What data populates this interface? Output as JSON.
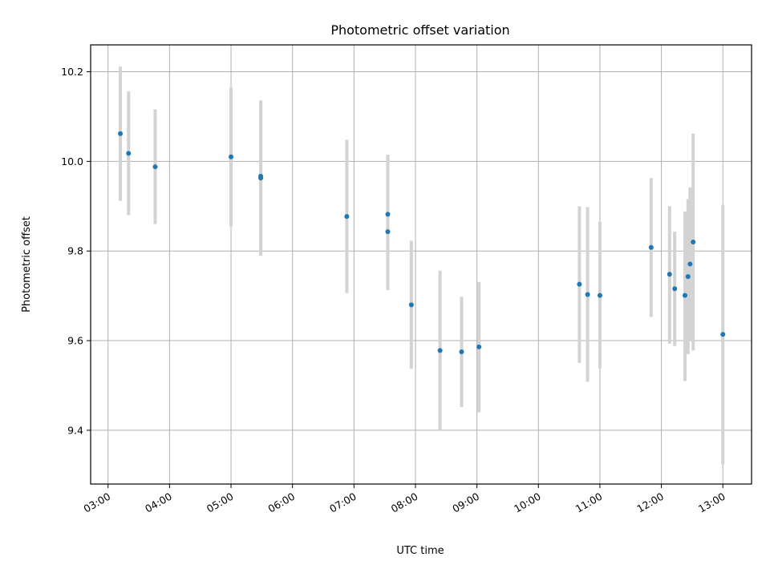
{
  "chart_data": {
    "type": "scatter",
    "title": "Photometric offset variation",
    "xlabel": "UTC time",
    "ylabel": "Photometric offset",
    "x_ticks": [
      "03:00",
      "04:00",
      "05:00",
      "06:00",
      "07:00",
      "08:00",
      "09:00",
      "10:00",
      "11:00",
      "12:00",
      "13:00"
    ],
    "y_ticks": [
      "9.4",
      "9.6",
      "9.8",
      "10.0",
      "10.2"
    ],
    "xlim": [
      "02:43",
      "13:28"
    ],
    "ylim": [
      9.28,
      10.26
    ],
    "grid": true,
    "legend": "none",
    "colors": {
      "point": "#1f77b4",
      "errorbar": "#d3d3d3",
      "grid": "#b0b0b0"
    },
    "points": [
      {
        "t": "03:12",
        "y": 10.062,
        "lo": 9.912,
        "hi": 10.212
      },
      {
        "t": "03:20",
        "y": 10.018,
        "lo": 9.88,
        "hi": 10.156
      },
      {
        "t": "03:46",
        "y": 9.988,
        "lo": 9.86,
        "hi": 10.116
      },
      {
        "t": "05:00",
        "y": 10.01,
        "lo": 9.855,
        "hi": 10.165
      },
      {
        "t": "05:29",
        "y": 9.967,
        "lo": 9.79,
        "hi": 10.136
      },
      {
        "t": "05:29",
        "y": 9.963,
        "lo": 9.79,
        "hi": 10.136
      },
      {
        "t": "06:53",
        "y": 9.877,
        "lo": 9.706,
        "hi": 10.048
      },
      {
        "t": "07:33",
        "y": 9.882,
        "lo": 9.713,
        "hi": 10.015
      },
      {
        "t": "07:33",
        "y": 9.843,
        "lo": 9.713,
        "hi": 10.015
      },
      {
        "t": "07:56",
        "y": 9.68,
        "lo": 9.537,
        "hi": 9.823
      },
      {
        "t": "08:24",
        "y": 9.578,
        "lo": 9.4,
        "hi": 9.756
      },
      {
        "t": "08:45",
        "y": 9.575,
        "lo": 9.452,
        "hi": 9.698
      },
      {
        "t": "09:02",
        "y": 9.586,
        "lo": 9.44,
        "hi": 9.731
      },
      {
        "t": "10:40",
        "y": 9.726,
        "lo": 9.55,
        "hi": 9.9
      },
      {
        "t": "10:48",
        "y": 9.703,
        "lo": 9.508,
        "hi": 9.898
      },
      {
        "t": "11:00",
        "y": 9.701,
        "lo": 9.538,
        "hi": 9.865
      },
      {
        "t": "11:50",
        "y": 9.808,
        "lo": 9.653,
        "hi": 9.963
      },
      {
        "t": "12:08",
        "y": 9.748,
        "lo": 9.593,
        "hi": 9.9
      },
      {
        "t": "12:13",
        "y": 9.716,
        "lo": 9.588,
        "hi": 9.843
      },
      {
        "t": "12:23",
        "y": 9.701,
        "lo": 9.51,
        "hi": 9.888
      },
      {
        "t": "12:26",
        "y": 9.743,
        "lo": 9.57,
        "hi": 9.916
      },
      {
        "t": "12:28",
        "y": 9.771,
        "lo": 9.6,
        "hi": 9.942
      },
      {
        "t": "12:31",
        "y": 9.82,
        "lo": 9.578,
        "hi": 10.062
      },
      {
        "t": "13:00",
        "y": 9.614,
        "lo": 9.324,
        "hi": 9.903
      }
    ]
  }
}
